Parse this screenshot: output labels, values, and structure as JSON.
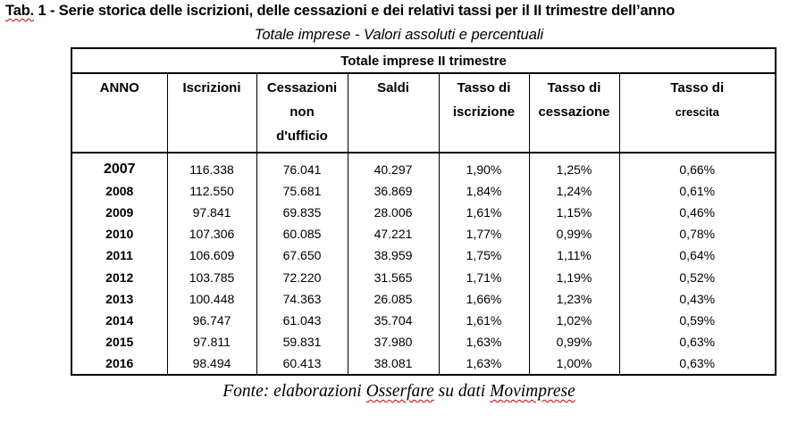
{
  "title": {
    "prefix": "Tab.",
    "text": " 1 - Serie storica delle iscrizioni, delle cessazioni e dei relativi tassi per il II trimestre dell’anno"
  },
  "subtitle": "Totale imprese - Valori assoluti e percentuali",
  "table": {
    "caption": "Totale imprese II trimestre",
    "headers": [
      {
        "lines": [
          "ANNO"
        ]
      },
      {
        "lines": [
          "Iscrizioni"
        ]
      },
      {
        "lines": [
          "Cessazioni",
          "non",
          "d'ufficio"
        ]
      },
      {
        "lines": [
          "Saldi"
        ]
      },
      {
        "lines": [
          "Tasso di",
          "iscrizione"
        ]
      },
      {
        "lines": [
          "Tasso di",
          "cessazione"
        ]
      },
      {
        "lines": [
          "Tasso di",
          "crescita"
        ]
      }
    ],
    "rows": [
      [
        "2007",
        "116.338",
        "76.041",
        "40.297",
        "1,90%",
        "1,25%",
        "0,66%"
      ],
      [
        "2008",
        "112.550",
        "75.681",
        "36.869",
        "1,84%",
        "1,24%",
        "0,61%"
      ],
      [
        "2009",
        "97.841",
        "69.835",
        "28.006",
        "1,61%",
        "1,15%",
        "0,46%"
      ],
      [
        "2010",
        "107.306",
        "60.085",
        "47.221",
        "1,77%",
        "0,99%",
        "0,78%"
      ],
      [
        "2011",
        "106.609",
        "67.650",
        "38.959",
        "1,75%",
        "1,11%",
        "0,64%"
      ],
      [
        "2012",
        "103.785",
        "72.220",
        "31.565",
        "1,71%",
        "1,19%",
        "0,52%"
      ],
      [
        "2013",
        "100.448",
        "74.363",
        "26.085",
        "1,66%",
        "1,23%",
        "0,43%"
      ],
      [
        "2014",
        "96.747",
        "61.043",
        "35.704",
        "1,61%",
        "1,02%",
        "0,59%"
      ],
      [
        "2015",
        "97.811",
        "59.831",
        "37.980",
        "1,63%",
        "0,99%",
        "0,63%"
      ],
      [
        "2016",
        "98.494",
        "60.413",
        "38.081",
        "1,63%",
        "1,00%",
        "0,63%"
      ]
    ]
  },
  "source": {
    "part1": "Fonte: elaborazioni ",
    "part2": "Osserfare",
    "part3": " su dati ",
    "part4": "Movimprese"
  }
}
